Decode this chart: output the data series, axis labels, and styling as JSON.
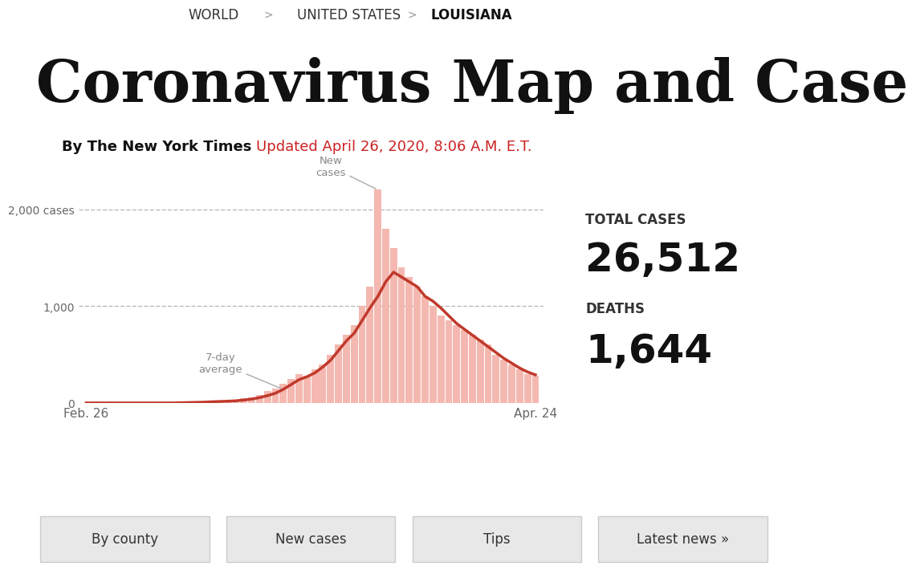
{
  "breadcrumb": "WORLD  >  UNITED STATES  >  LOUISIANA",
  "breadcrumb_parts": [
    "WORLD",
    ">",
    "UNITED STATES",
    ">",
    "LOUISIANA"
  ],
  "title": "Coronavirus Map and Case",
  "byline": "By The New York Times",
  "updated": "Updated April 26, 2020, 8:06 A.M. E.T.",
  "total_cases_label": "TOTAL CASES",
  "total_cases_value": "26,512",
  "deaths_label": "DEATHS",
  "deaths_value": "1,644",
  "x_label_left": "Feb. 26",
  "x_label_right": "Apr. 24",
  "y_ticks": [
    0,
    1000,
    2000
  ],
  "y_tick_labels": [
    "0",
    "1,000",
    "2,000 cases"
  ],
  "y_max": 2400,
  "annotation_new_cases": "New\ncases",
  "annotation_7day": "7-day\naverage",
  "bar_color": "#f4b8b0",
  "line_color": "#c0392b",
  "background_color": "#ffffff",
  "bar_data": [
    0,
    0,
    0,
    0,
    0,
    0,
    0,
    0,
    0,
    0,
    0,
    0,
    5,
    8,
    10,
    15,
    20,
    18,
    25,
    30,
    45,
    60,
    80,
    120,
    150,
    200,
    250,
    300,
    280,
    350,
    400,
    500,
    600,
    700,
    800,
    1000,
    1200,
    2200,
    1800,
    1600,
    1400,
    1300,
    1200,
    1100,
    1000,
    900,
    850,
    800,
    750,
    700,
    650,
    600,
    500,
    450,
    400,
    350,
    300,
    280
  ],
  "avg_data": [
    0,
    0,
    0,
    0,
    0,
    0,
    0,
    0,
    0,
    0,
    0,
    0,
    2,
    4,
    6,
    8,
    12,
    15,
    18,
    22,
    30,
    40,
    55,
    75,
    100,
    140,
    190,
    240,
    270,
    310,
    370,
    440,
    540,
    640,
    720,
    850,
    980,
    1100,
    1250,
    1350,
    1300,
    1250,
    1200,
    1100,
    1050,
    980,
    900,
    820,
    760,
    700,
    640,
    580,
    520,
    460,
    410,
    360,
    320,
    290
  ]
}
